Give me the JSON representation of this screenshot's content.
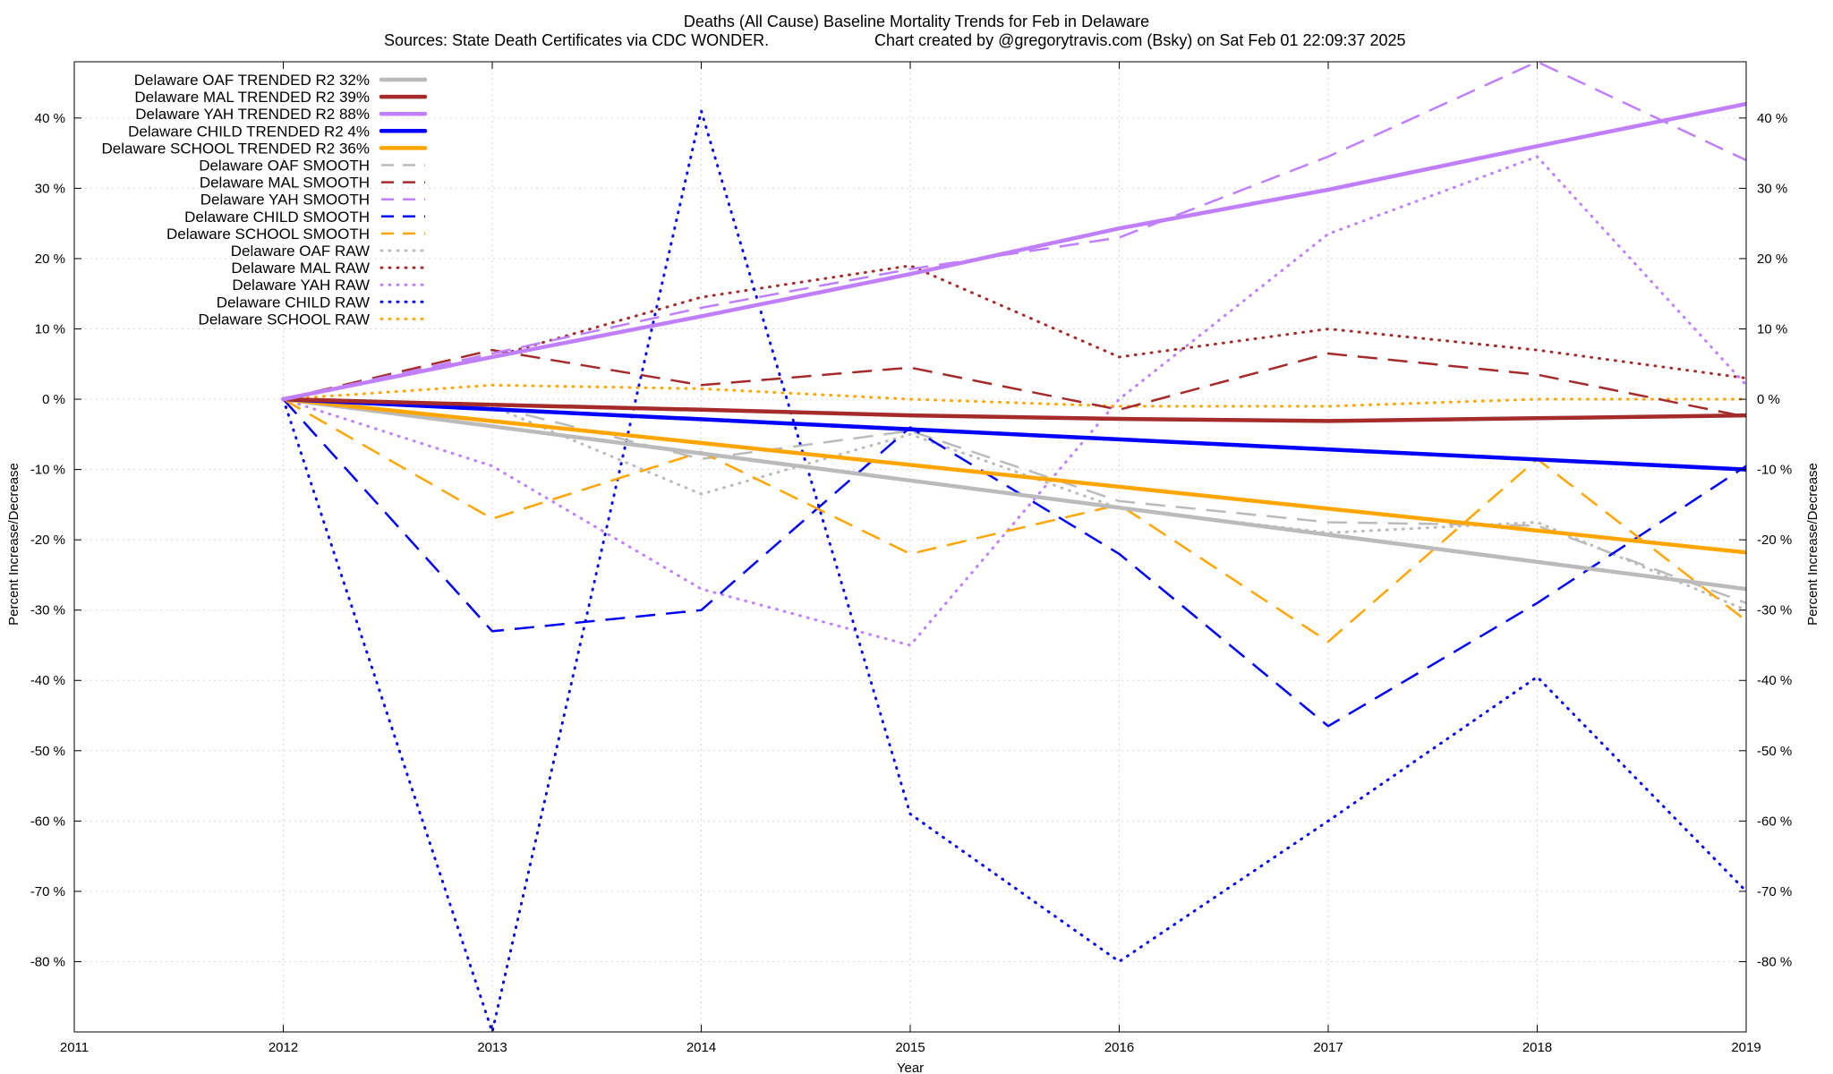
{
  "chart_data": {
    "type": "line",
    "title": "Deaths (All Cause)  Baseline Mortality Trends for Feb in Delaware",
    "subtitle_left": "Sources: State Death Certificates via CDC WONDER.",
    "subtitle_right": "Chart created by @gregorytravis.com (Bsky) on Sat Feb 01 22:09:37 2025",
    "xlabel": "Year",
    "ylabel": "Percent Increase/Decrease",
    "y2label": "Percent Increase/Decrease",
    "xlim": [
      2011,
      2019
    ],
    "ylim": [
      -90,
      48
    ],
    "x_ticks": [
      "2011",
      "2012",
      "2013",
      "2014",
      "2015",
      "2016",
      "2017",
      "2018",
      "2019"
    ],
    "x_tick_values": [
      2011,
      2012,
      2013,
      2014,
      2015,
      2016,
      2017,
      2018,
      2019
    ],
    "y_ticks": [
      "40 %",
      "30 %",
      "20 %",
      "10 %",
      "0 %",
      "-10 %",
      "-20 %",
      "-30 %",
      "-40 %",
      "-50 %",
      "-60 %",
      "-70 %",
      "-80 %"
    ],
    "y_tick_values": [
      40,
      30,
      20,
      10,
      0,
      -10,
      -20,
      -30,
      -40,
      -50,
      -60,
      -70,
      -80
    ],
    "grid": true,
    "legend_position": "top-left",
    "series": [
      {
        "name": "Delaware OAF TRENDED R2  32%",
        "style": "solid",
        "color": "#bbbbbb",
        "x": [
          2012,
          2019
        ],
        "y": [
          0,
          -27
        ]
      },
      {
        "name": "Delaware MAL TRENDED R2  39%",
        "style": "solid",
        "color": "#a52a2a",
        "x": [
          2012,
          2013,
          2014,
          2015,
          2016,
          2017,
          2018,
          2019
        ],
        "y": [
          0,
          -0.8,
          -1.5,
          -2.3,
          -2.8,
          -3.1,
          -2.7,
          -2.3
        ]
      },
      {
        "name": "Delaware YAH TRENDED R2  88%",
        "style": "solid",
        "color": "#bf7fff",
        "x": [
          2012,
          2013,
          2014,
          2015,
          2016,
          2017,
          2018,
          2019
        ],
        "y": [
          0,
          6.0,
          11.8,
          17.8,
          24.3,
          29.8,
          36.0,
          42.0
        ]
      },
      {
        "name": "Delaware CHILD TRENDED R2  4%",
        "style": "solid",
        "color": "#0000ff",
        "x": [
          2012,
          2019
        ],
        "y": [
          0,
          -10
        ]
      },
      {
        "name": "Delaware SCHOOL TRENDED R2  36%",
        "style": "solid",
        "color": "#ffa500",
        "x": [
          2012,
          2019
        ],
        "y": [
          0,
          -21.8
        ]
      },
      {
        "name": "Delaware OAF SMOOTH",
        "style": "dashed",
        "color": "#bbbbbb",
        "x": [
          2012,
          2013,
          2014,
          2015,
          2016,
          2017,
          2018,
          2019
        ],
        "y": [
          0,
          -1,
          -8.5,
          -4.5,
          -14.5,
          -17.5,
          -18,
          -29
        ]
      },
      {
        "name": "Delaware MAL SMOOTH",
        "style": "dashed",
        "color": "#a52a2a",
        "x": [
          2012,
          2013,
          2014,
          2015,
          2016,
          2017,
          2018,
          2019
        ],
        "y": [
          0,
          7,
          2,
          4.5,
          -1.5,
          6.5,
          3.5,
          -2.5
        ]
      },
      {
        "name": "Delaware YAH SMOOTH",
        "style": "dashed",
        "color": "#bf7fff",
        "x": [
          2012,
          2013,
          2014,
          2015,
          2016,
          2017,
          2018,
          2019
        ],
        "y": [
          0,
          6.5,
          13,
          18.5,
          23,
          34.5,
          48,
          34
        ]
      },
      {
        "name": "Delaware CHILD SMOOTH",
        "style": "dashed",
        "color": "#0000ff",
        "x": [
          2012,
          2013,
          2014,
          2015,
          2016,
          2017,
          2018,
          2019
        ],
        "y": [
          0,
          -33,
          -30,
          -4,
          -22,
          -46.5,
          -29,
          -9.5
        ]
      },
      {
        "name": "Delaware SCHOOL SMOOTH",
        "style": "dashed",
        "color": "#ffa500",
        "x": [
          2012,
          2013,
          2014,
          2015,
          2016,
          2017,
          2018,
          2019
        ],
        "y": [
          0,
          -17,
          -7.5,
          -22,
          -15,
          -34.5,
          -8.5,
          -31.5
        ]
      },
      {
        "name": "Delaware OAF RAW",
        "style": "dotted",
        "color": "#bbbbbb",
        "x": [
          2012,
          2013,
          2014,
          2015,
          2016,
          2017,
          2018,
          2019
        ],
        "y": [
          0,
          -1,
          -13.5,
          -5,
          -15.5,
          -19,
          -17.5,
          -30
        ]
      },
      {
        "name": "Delaware MAL RAW",
        "style": "dotted",
        "color": "#a52a2a",
        "x": [
          2012,
          2013,
          2014,
          2015,
          2016,
          2017,
          2018,
          2019
        ],
        "y": [
          0,
          6,
          14.5,
          19,
          6,
          10,
          7,
          3
        ]
      },
      {
        "name": "Delaware YAH RAW",
        "style": "dotted",
        "color": "#bf7fff",
        "x": [
          2012,
          2013,
          2014,
          2015,
          2016,
          2017,
          2018,
          2019
        ],
        "y": [
          0,
          -9.5,
          -27,
          -35,
          0,
          23.5,
          34.5,
          2
        ]
      },
      {
        "name": "Delaware CHILD RAW",
        "style": "dotted",
        "color": "#0000ff",
        "x": [
          2012,
          2013,
          2014,
          2015,
          2016,
          2017,
          2018,
          2019
        ],
        "y": [
          0,
          -90,
          41,
          -59,
          -80,
          -60,
          -39.5,
          -70
        ]
      },
      {
        "name": "Delaware SCHOOL RAW",
        "style": "dotted",
        "color": "#ffa500",
        "x": [
          2012,
          2013,
          2014,
          2015,
          2016,
          2017,
          2018,
          2019
        ],
        "y": [
          0,
          2,
          1.5,
          0,
          -1,
          -1,
          0,
          0
        ]
      }
    ]
  }
}
